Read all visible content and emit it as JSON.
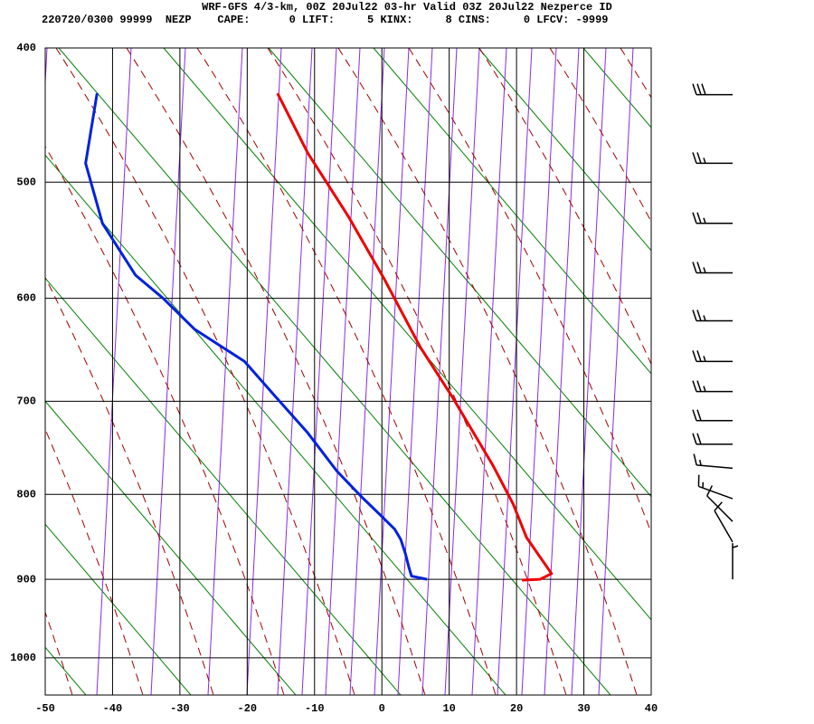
{
  "chart_data": {
    "type": "skewt",
    "title": "WRF-GFS 4/3-km, 00Z 20Jul22 03-hr Valid 03Z 20Jul22 Nezperce ID",
    "subtitle": "220720/0300 99999  NEZP    CAPE:      0 LIFT:     5 KINX:     8 CINS:     0 LFCV: -9999",
    "xlim": [
      -50,
      40
    ],
    "xticks": [
      -50,
      -40,
      -30,
      -20,
      -10,
      0,
      10,
      20,
      30,
      40
    ],
    "ylim": [
      400,
      1050
    ],
    "yticks": [
      400,
      500,
      600,
      700,
      800,
      900,
      1000
    ],
    "grid": true,
    "series": [
      {
        "color": "#ee0000",
        "x": [
          20.8,
          23.5,
          25.2,
          21.5,
          19.5,
          16.5,
          10.5,
          5.7,
          0.4,
          -5.0,
          -11.0,
          -15.5
        ],
        "values": [
          901,
          900,
          893,
          850,
          811,
          768,
          696,
          646,
          583,
          528,
          477,
          432
        ]
      },
      {
        "color": "#0022dd",
        "x": [
          6.7,
          4.4,
          4.0,
          3.5,
          2.8,
          1.9,
          -0.3,
          -3.0,
          -6.7,
          -11.0,
          -15.7,
          -20.4,
          -27.8,
          -32.5,
          -36.6,
          -41.5,
          -44.0,
          -42.3
        ],
        "values": [
          900,
          896,
          885,
          869,
          852,
          840,
          823,
          803,
          774,
          733,
          696,
          660,
          629,
          600,
          579,
          534,
          485,
          432
        ]
      }
    ],
    "wind": {
      "pressure": [
        433,
        485,
        534,
        577,
        621,
        660,
        690,
        720,
        745,
        771,
        805,
        831,
        855,
        900
      ],
      "direction": [
        270,
        270,
        270,
        270,
        270,
        270,
        270,
        270,
        270,
        275,
        290,
        315,
        330,
        360
      ],
      "speed": [
        30,
        25,
        25,
        25,
        25,
        25,
        25,
        20,
        20,
        15,
        15,
        10,
        10,
        5
      ]
    }
  }
}
